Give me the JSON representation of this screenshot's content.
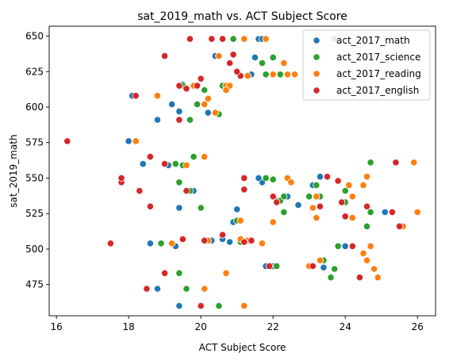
{
  "chart_data": {
    "type": "scatter",
    "title": "sat_2019_math vs. ACT Subject Score",
    "xlabel": "ACT Subject Score",
    "ylabel": "sat_2019_math",
    "xlim": [
      15.8,
      26.5
    ],
    "ylim": [
      453,
      657
    ],
    "xticks": [
      16,
      18,
      20,
      22,
      24,
      26
    ],
    "yticks": [
      475,
      500,
      525,
      550,
      575,
      600,
      625,
      650
    ],
    "grid": false,
    "legend_position": "top-right",
    "series": [
      {
        "name": "act_2017_math",
        "color": "#1f77b4",
        "points": [
          [
            19.4,
            460
          ],
          [
            20.8,
            505
          ],
          [
            21.2,
            505
          ],
          [
            20.3,
            506
          ],
          [
            18.6,
            504
          ],
          [
            18.8,
            472
          ],
          [
            19.3,
            502
          ],
          [
            19.1,
            559
          ],
          [
            20.6,
            507
          ],
          [
            21.8,
            488
          ],
          [
            22.0,
            488
          ],
          [
            23.3,
            492
          ],
          [
            23.4,
            487
          ],
          [
            24.0,
            502
          ],
          [
            25.1,
            526
          ],
          [
            25.4,
            561
          ],
          [
            23.1,
            545
          ],
          [
            23.2,
            537
          ],
          [
            23.3,
            551
          ],
          [
            22.4,
            537
          ],
          [
            22.7,
            531
          ],
          [
            22.1,
            534
          ],
          [
            21.7,
            547
          ],
          [
            21.6,
            550
          ],
          [
            20.9,
            519
          ],
          [
            21.0,
            528
          ],
          [
            19.8,
            541
          ],
          [
            19.4,
            529
          ],
          [
            18.4,
            560
          ],
          [
            18.0,
            576
          ],
          [
            18.1,
            608
          ],
          [
            18.8,
            591
          ],
          [
            19.2,
            602
          ],
          [
            19.5,
            616
          ],
          [
            19.6,
            613
          ],
          [
            19.9,
            615
          ],
          [
            20.2,
            596
          ],
          [
            20.4,
            636
          ],
          [
            20.6,
            615
          ],
          [
            21.1,
            622
          ],
          [
            21.4,
            623
          ],
          [
            21.5,
            635
          ],
          [
            21.6,
            648
          ],
          [
            21.7,
            648
          ],
          [
            22.0,
            635
          ],
          [
            19.4,
            597
          ],
          [
            24.0,
            533
          ],
          [
            24.2,
            537
          ]
        ]
      },
      {
        "name": "act_2017_science",
        "color": "#2ca02c",
        "points": [
          [
            20.5,
            460
          ],
          [
            19.6,
            472
          ],
          [
            19.4,
            483
          ],
          [
            18.9,
            504
          ],
          [
            21.1,
            505
          ],
          [
            22.1,
            488
          ],
          [
            23.4,
            492
          ],
          [
            23.6,
            480
          ],
          [
            23.7,
            486
          ],
          [
            23.8,
            502
          ],
          [
            24.6,
            516
          ],
          [
            24.7,
            526
          ],
          [
            24.7,
            561
          ],
          [
            23.2,
            545
          ],
          [
            23.3,
            537
          ],
          [
            22.2,
            534
          ],
          [
            22.3,
            537
          ],
          [
            22.0,
            549
          ],
          [
            21.8,
            550
          ],
          [
            21.0,
            520
          ],
          [
            20.0,
            529
          ],
          [
            19.7,
            541
          ],
          [
            19.4,
            547
          ],
          [
            19.3,
            560
          ],
          [
            19.5,
            559
          ],
          [
            19.8,
            565
          ],
          [
            18.2,
            576
          ],
          [
            19.7,
            591
          ],
          [
            19.9,
            602
          ],
          [
            19.5,
            615
          ],
          [
            20.6,
            615
          ],
          [
            20.5,
            636
          ],
          [
            20.9,
            648
          ],
          [
            21.7,
            631
          ],
          [
            21.8,
            623
          ],
          [
            22.2,
            623
          ],
          [
            22.0,
            635
          ],
          [
            23.7,
            648
          ],
          [
            24.0,
            533
          ],
          [
            24.0,
            541
          ],
          [
            20.1,
            612
          ],
          [
            20.5,
            595
          ],
          [
            19.5,
            559
          ],
          [
            19.8,
            565
          ],
          [
            21.8,
            648
          ],
          [
            23.0,
            537
          ],
          [
            22.3,
            526
          ]
        ]
      },
      {
        "name": "act_2017_reading",
        "color": "#ff7f0e",
        "points": [
          [
            21.2,
            460
          ],
          [
            20.1,
            472
          ],
          [
            20.7,
            483
          ],
          [
            20.2,
            506
          ],
          [
            19.2,
            504
          ],
          [
            21.1,
            507
          ],
          [
            21.3,
            506
          ],
          [
            21.7,
            504
          ],
          [
            23.0,
            488
          ],
          [
            23.3,
            492
          ],
          [
            24.6,
            492
          ],
          [
            24.5,
            497
          ],
          [
            24.7,
            502
          ],
          [
            24.8,
            486
          ],
          [
            24.9,
            480
          ],
          [
            25.6,
            516
          ],
          [
            26.0,
            526
          ],
          [
            25.9,
            561
          ],
          [
            24.5,
            545
          ],
          [
            24.6,
            551
          ],
          [
            24.1,
            545
          ],
          [
            24.2,
            537
          ],
          [
            24.2,
            522
          ],
          [
            23.2,
            537
          ],
          [
            23.1,
            529
          ],
          [
            23.2,
            522
          ],
          [
            22.4,
            550
          ],
          [
            22.5,
            547
          ],
          [
            22.0,
            519
          ],
          [
            21.1,
            520
          ],
          [
            20.1,
            565
          ],
          [
            19.6,
            559
          ],
          [
            18.2,
            576
          ],
          [
            18.8,
            608
          ],
          [
            20.1,
            602
          ],
          [
            20.4,
            596
          ],
          [
            19.8,
            615
          ],
          [
            20.7,
            615
          ],
          [
            20.8,
            615
          ],
          [
            20.5,
            636
          ],
          [
            20.6,
            648
          ],
          [
            21.2,
            648
          ],
          [
            21.8,
            648
          ],
          [
            21.3,
            622
          ],
          [
            22.0,
            623
          ],
          [
            22.3,
            631
          ],
          [
            22.4,
            623
          ],
          [
            22.6,
            623
          ],
          [
            20.7,
            612
          ],
          [
            20.2,
            606
          ]
        ]
      },
      {
        "name": "act_2017_english",
        "color": "#d62728",
        "points": [
          [
            16.3,
            576
          ],
          [
            17.5,
            504
          ],
          [
            17.8,
            547
          ],
          [
            17.8,
            550
          ],
          [
            18.3,
            541
          ],
          [
            18.6,
            530
          ],
          [
            18.6,
            565
          ],
          [
            19.0,
            560
          ],
          [
            19.0,
            483
          ],
          [
            19.0,
            636
          ],
          [
            18.5,
            472
          ],
          [
            18.2,
            608
          ],
          [
            19.4,
            591
          ],
          [
            19.7,
            648
          ],
          [
            19.4,
            615
          ],
          [
            19.6,
            613
          ],
          [
            20.0,
            460
          ],
          [
            20.1,
            506
          ],
          [
            20.6,
            510
          ],
          [
            20.9,
            637
          ],
          [
            20.8,
            631
          ],
          [
            20.3,
            648
          ],
          [
            21.1,
            622
          ],
          [
            21.2,
            550
          ],
          [
            21.2,
            542
          ],
          [
            21.4,
            506
          ],
          [
            21.2,
            505
          ],
          [
            21.9,
            488
          ],
          [
            22.0,
            537
          ],
          [
            22.1,
            533
          ],
          [
            23.1,
            488
          ],
          [
            23.3,
            530
          ],
          [
            23.5,
            551
          ],
          [
            23.8,
            548
          ],
          [
            23.9,
            533
          ],
          [
            24.0,
            523
          ],
          [
            24.2,
            502
          ],
          [
            24.4,
            480
          ],
          [
            24.6,
            530
          ],
          [
            25.3,
            526
          ],
          [
            25.4,
            561
          ],
          [
            25.5,
            516
          ],
          [
            19.9,
            615
          ],
          [
            20.0,
            620
          ],
          [
            19.5,
            507
          ],
          [
            20.6,
            648
          ],
          [
            21.0,
            625
          ],
          [
            19.6,
            541
          ],
          [
            23.2,
            623
          ]
        ]
      }
    ]
  }
}
